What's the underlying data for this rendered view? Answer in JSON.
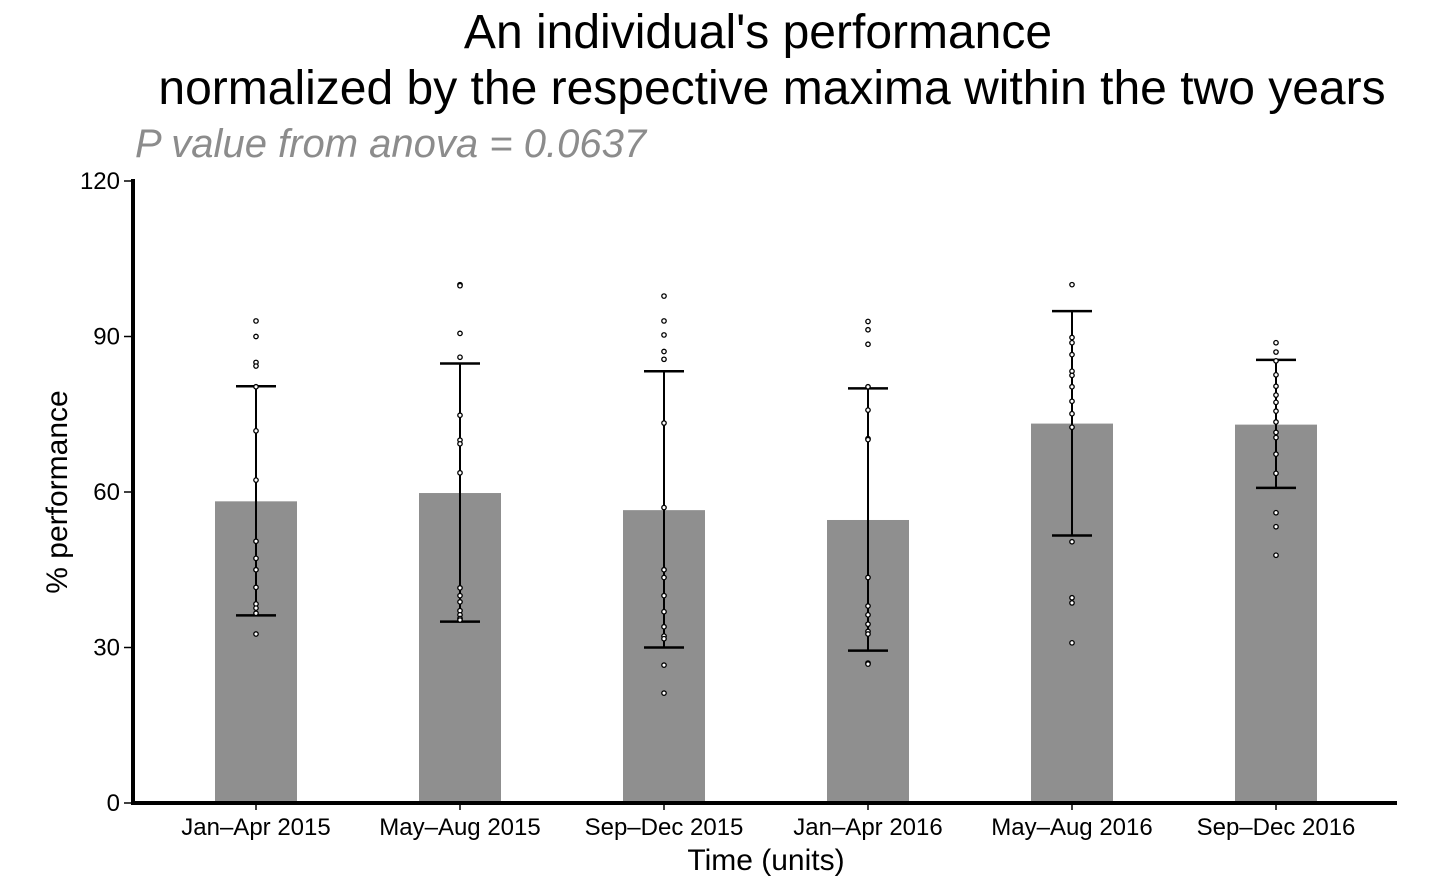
{
  "chart_data": {
    "type": "bar",
    "title_line1": "An individual's performance",
    "title_line2": "normalized by the respective maxima within the two years",
    "subtitle": "P value from anova = 0.0637",
    "xlabel": "Time (units)",
    "ylabel": "% performance",
    "ylim": [
      0,
      120
    ],
    "yticks": [
      0,
      30,
      60,
      90,
      120
    ],
    "yticklabels": [
      "0",
      "30",
      "60",
      "90",
      "120"
    ],
    "grid": false,
    "bar_color": "#8f8f8f",
    "categories": [
      "Jan–Apr 2015",
      "May–Aug 2015",
      "Sep–Dec 2015",
      "Jan–Apr 2016",
      "May–Aug 2016",
      "Sep–Dec 2016"
    ],
    "values": [
      58.2,
      59.8,
      56.5,
      54.6,
      73.2,
      73.0
    ],
    "error_bars": [
      {
        "low": 36.2,
        "high": 80.4
      },
      {
        "low": 35.0,
        "high": 84.8
      },
      {
        "low": 30.0,
        "high": 83.3
      },
      {
        "low": 29.4,
        "high": 80.0
      },
      {
        "low": 51.6,
        "high": 94.9
      },
      {
        "low": 60.8,
        "high": 85.5
      }
    ],
    "points": [
      [
        93.0,
        90.0,
        85.0,
        84.3,
        80.3,
        71.8,
        62.3,
        50.5,
        47.2,
        45.0,
        41.6,
        38.4,
        37.6,
        36.6,
        32.6
      ],
      [
        100.0,
        99.8,
        90.6,
        86.0,
        74.8,
        70.0,
        69.3,
        63.7,
        41.5,
        40.0,
        38.8,
        37.1,
        36.3,
        35.6,
        35.3
      ],
      [
        97.8,
        93.0,
        90.3,
        87.1,
        85.6,
        73.3,
        57.0,
        45.0,
        43.5,
        40.0,
        36.9,
        34.0,
        32.2,
        31.7,
        26.6,
        21.2
      ],
      [
        92.9,
        91.3,
        88.5,
        80.3,
        75.8,
        70.3,
        70.1,
        43.5,
        38.0,
        36.3,
        34.5,
        33.1,
        32.6,
        27.0,
        26.8
      ],
      [
        100.0,
        89.8,
        88.8,
        86.5,
        83.3,
        82.5,
        80.3,
        77.5,
        75.1,
        72.5,
        50.4,
        39.6,
        38.6,
        30.9
      ],
      [
        88.8,
        87.0,
        85.3,
        82.6,
        80.4,
        78.7,
        77.3,
        75.6,
        73.5,
        71.5,
        70.5,
        67.3,
        63.6,
        56.0,
        53.3,
        47.8
      ]
    ]
  }
}
